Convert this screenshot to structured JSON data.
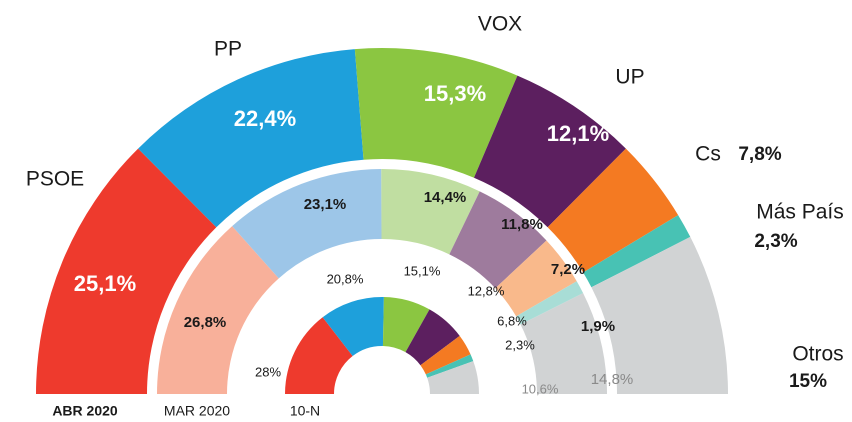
{
  "chart_data": {
    "type": "nested-semi-donut",
    "categories": [
      "PSOE",
      "PP",
      "VOX",
      "UP",
      "Cs",
      "Más País",
      "Otros"
    ],
    "series": [
      {
        "name": "ABR 2020",
        "colors": [
          "#ee3a2d",
          "#1ea0db",
          "#8bc641",
          "#5c1f5f",
          "#f47a22",
          "#48c2b4",
          "#d1d3d4"
        ],
        "values": [
          25.1,
          22.4,
          15.3,
          12.1,
          7.8,
          2.3,
          15
        ],
        "value_labels": [
          "25,1%",
          "22,4%",
          "15,3%",
          "12,1%",
          "7,8%",
          "2,3%",
          "15%"
        ]
      },
      {
        "name": "MAR 2020",
        "colors": [
          "#f8b09a",
          "#9dc6e8",
          "#c0dea1",
          "#9e7b9d",
          "#f9b98b",
          "#a8ddd6",
          "#d1d3d4"
        ],
        "values": [
          26.8,
          23.1,
          14.4,
          11.8,
          7.2,
          1.9,
          14.8
        ],
        "value_labels": [
          "26,8%",
          "23,1%",
          "14,4%",
          "11,8%",
          "7,2%",
          "1,9%",
          "14,8%"
        ]
      },
      {
        "name": "10-N",
        "colors": [
          "#ee3a2d",
          "#1ea0db",
          "#8bc641",
          "#5c1f5f",
          "#f47a22",
          "#48c2b4",
          "#d1d3d4"
        ],
        "values": [
          28,
          20.8,
          15.1,
          12.8,
          6.8,
          2.3,
          10.6
        ],
        "value_labels": [
          "28%",
          "20,8%",
          "15,1%",
          "12,8%",
          "6,8%",
          "2,3%",
          "10,6%"
        ]
      }
    ]
  }
}
